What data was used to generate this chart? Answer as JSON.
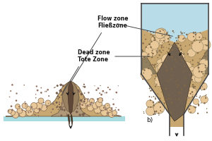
{
  "bg_color": "#ffffff",
  "floor_color": "#a8dce0",
  "wall_color": "#555555",
  "sand_light_color": "#e8c898",
  "sand_mid_color": "#c8a870",
  "dead_zone_color": "#907860",
  "dead_zone_edge": "#6a5840",
  "flow_channel_color": "#705040",
  "silo_bg_color": "#b8dce8",
  "outlet_color": "#333333",
  "label_flow": "Flow zone\nFließzone",
  "label_dead": "Dead zone\nTote Zone",
  "label_b": "b)",
  "annotation_color": "#444444",
  "text_color": "#111111",
  "silo_wall_color": "#444444",
  "heap_texture_color": "#b09878",
  "heap_texture_edge": "#887058"
}
